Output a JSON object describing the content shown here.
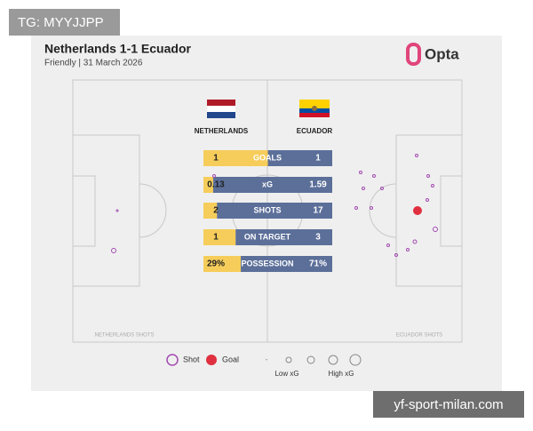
{
  "watermark_top": "TG: MYYJJPP",
  "watermark_bottom": "yf-sport-milan.com",
  "header": {
    "title": "Netherlands 1-1 Ecuador",
    "subtitle": "Friendly | 31 March 2026",
    "logo": "Opta"
  },
  "teams": {
    "home": "NETHERLANDS",
    "away": "ECUADOR"
  },
  "stats": [
    {
      "label": "GOALS",
      "home": 1,
      "away": 1
    },
    {
      "label": "xG",
      "home": 0.13,
      "away": 1.59
    },
    {
      "label": "SHOTS",
      "home": 2,
      "away": 17
    },
    {
      "label": "ON TARGET",
      "home": 1,
      "away": 3
    },
    {
      "label": "POSSESSION",
      "home": 29,
      "away": 71,
      "home_label": "29%",
      "away_label": "71%"
    }
  ],
  "pitch_labels": {
    "home": "NETHERLANDS SHOTS",
    "away": "ECUADOR SHOTS"
  },
  "legend": {
    "shot": "Shot",
    "goal": "Goal",
    "dash": "-",
    "low": "Low xG",
    "high": "High xG"
  }
}
